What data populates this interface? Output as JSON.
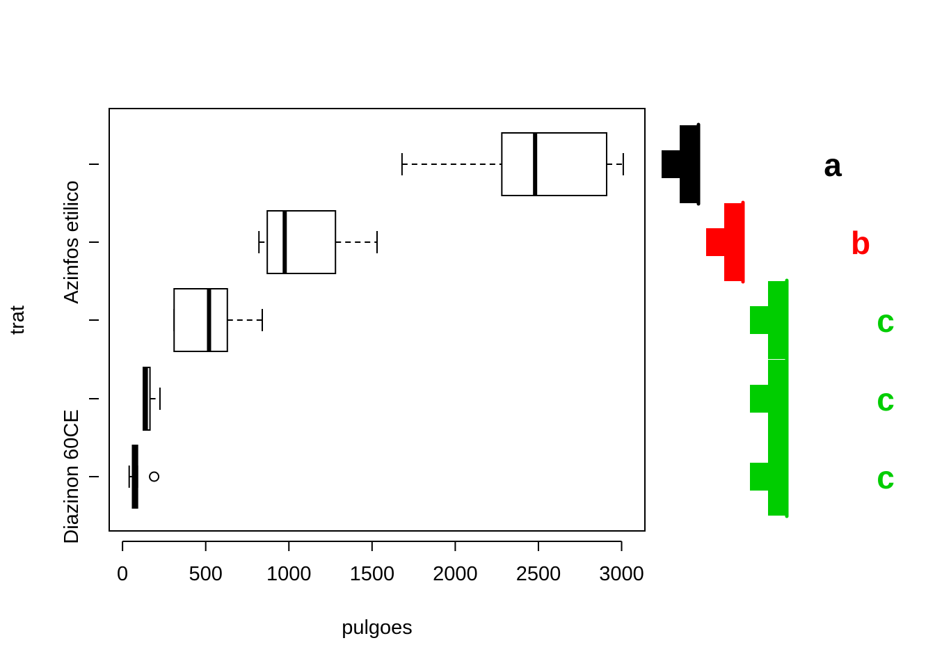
{
  "chart_data": {
    "type": "boxplot",
    "orientation": "horizontal",
    "xlabel": "pulgoes",
    "ylabel": "trat",
    "xlim": [
      -80,
      3140
    ],
    "x_ticks": [
      0,
      500,
      1000,
      1500,
      2000,
      2500,
      3000
    ],
    "x_tick_labels": [
      "0",
      "500",
      "1000",
      "1500",
      "2000",
      "2500",
      "3000"
    ],
    "y_tick_labels": [
      {
        "label": "Diazinon 60CE",
        "group": 1
      },
      {
        "label": "Azinfos etilico",
        "group": 4
      }
    ],
    "groups": [
      {
        "position": 1,
        "whisker_low": 40,
        "q1": 60,
        "median": 75,
        "q3": 90,
        "whisker_high": 90,
        "outliers": [
          190
        ]
      },
      {
        "position": 2,
        "whisker_low": 125,
        "q1": 125,
        "median": 140,
        "q3": 165,
        "whisker_high": 225,
        "outliers": []
      },
      {
        "position": 3,
        "whisker_low": 310,
        "q1": 310,
        "median": 520,
        "q3": 630,
        "whisker_high": 840,
        "outliers": []
      },
      {
        "position": 4,
        "whisker_low": 820,
        "q1": 870,
        "median": 975,
        "q3": 1280,
        "whisker_high": 1530,
        "outliers": []
      },
      {
        "position": 5,
        "whisker_low": 1680,
        "q1": 2280,
        "median": 2480,
        "q3": 2910,
        "whisker_high": 3010,
        "outliers": []
      }
    ],
    "significance_groups": [
      {
        "letter": "a",
        "color": "#000000",
        "positions": [
          5
        ]
      },
      {
        "letter": "b",
        "color": "#ff0000",
        "positions": [
          4
        ]
      },
      {
        "letter": "c",
        "color": "#00cd00",
        "positions": [
          3,
          2,
          1
        ]
      }
    ],
    "grid": false
  }
}
